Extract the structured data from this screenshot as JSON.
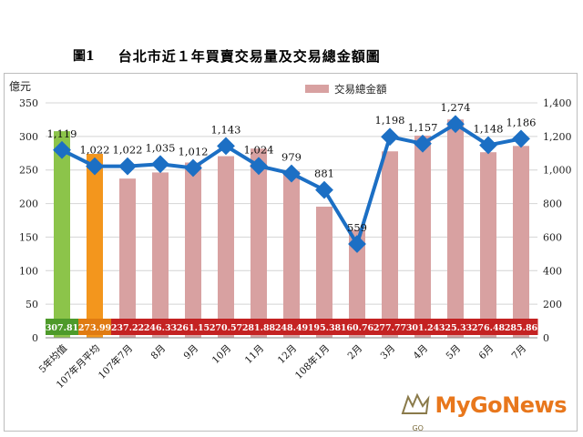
{
  "figure_number": "圖1",
  "figure_title": "台北市近１年買賣交易量及交易總金額圖",
  "logo": {
    "text": "MyGoNews",
    "tag": "GO"
  },
  "chart_data": {
    "type": "bar",
    "categories": [
      "5年均值",
      "107年月平均",
      "107年7月",
      "8月",
      "9月",
      "10月",
      "11月",
      "12月",
      "108年1月",
      "2月",
      "3月",
      "4月",
      "5月",
      "6月",
      "7月"
    ],
    "series": [
      {
        "name": "交易總金額",
        "type": "bar",
        "axis": "left",
        "values": [
          307.81,
          273.99,
          237.22,
          246.33,
          261.15,
          270.57,
          281.88,
          248.49,
          195.38,
          160.76,
          277.77,
          301.24,
          325.33,
          276.48,
          285.86
        ],
        "value_labels": [
          "307.81",
          "273.99",
          "237.22",
          "246.33",
          "261.15",
          "270.57",
          "281.88",
          "248.49",
          "195.38",
          "160.76",
          "277.77",
          "301.24",
          "325.33",
          "276.48",
          "285.86"
        ],
        "colors": [
          "#8cc44a",
          "#f3961d",
          "#d8a1a1",
          "#d8a1a1",
          "#d8a1a1",
          "#d8a1a1",
          "#d8a1a1",
          "#d8a1a1",
          "#d8a1a1",
          "#d8a1a1",
          "#d8a1a1",
          "#d8a1a1",
          "#d8a1a1",
          "#d8a1a1",
          "#d8a1a1"
        ]
      },
      {
        "type": "line",
        "axis": "right",
        "values": [
          1119,
          1022,
          1022,
          1035,
          1012,
          1143,
          1024,
          979,
          881,
          559,
          1198,
          1157,
          1274,
          1148,
          1186
        ],
        "value_labels": [
          "1,119",
          "1,022",
          "1,022",
          "1,035",
          "1,012",
          "1,143",
          "1,024",
          "979",
          "881",
          "559",
          "1,198",
          "1,157",
          "1,274",
          "1,148",
          "1,186"
        ],
        "color": "#1c6fc4"
      }
    ],
    "ylabel": "億元",
    "ylim": [
      0,
      350
    ],
    "yticks": [
      "0",
      "50",
      "100",
      "150",
      "200",
      "250",
      "300",
      "350"
    ],
    "y2lim": [
      0,
      1400
    ],
    "y2ticks": [
      "0",
      "200",
      "400",
      "600",
      "800",
      "1,000",
      "1,200",
      "1,400"
    ],
    "legend": {
      "position": "top",
      "entries": [
        "交易總金額"
      ]
    },
    "value_band_colors": [
      "#4d9a2a",
      "#e07b12",
      "#c42222"
    ],
    "grid": true
  }
}
